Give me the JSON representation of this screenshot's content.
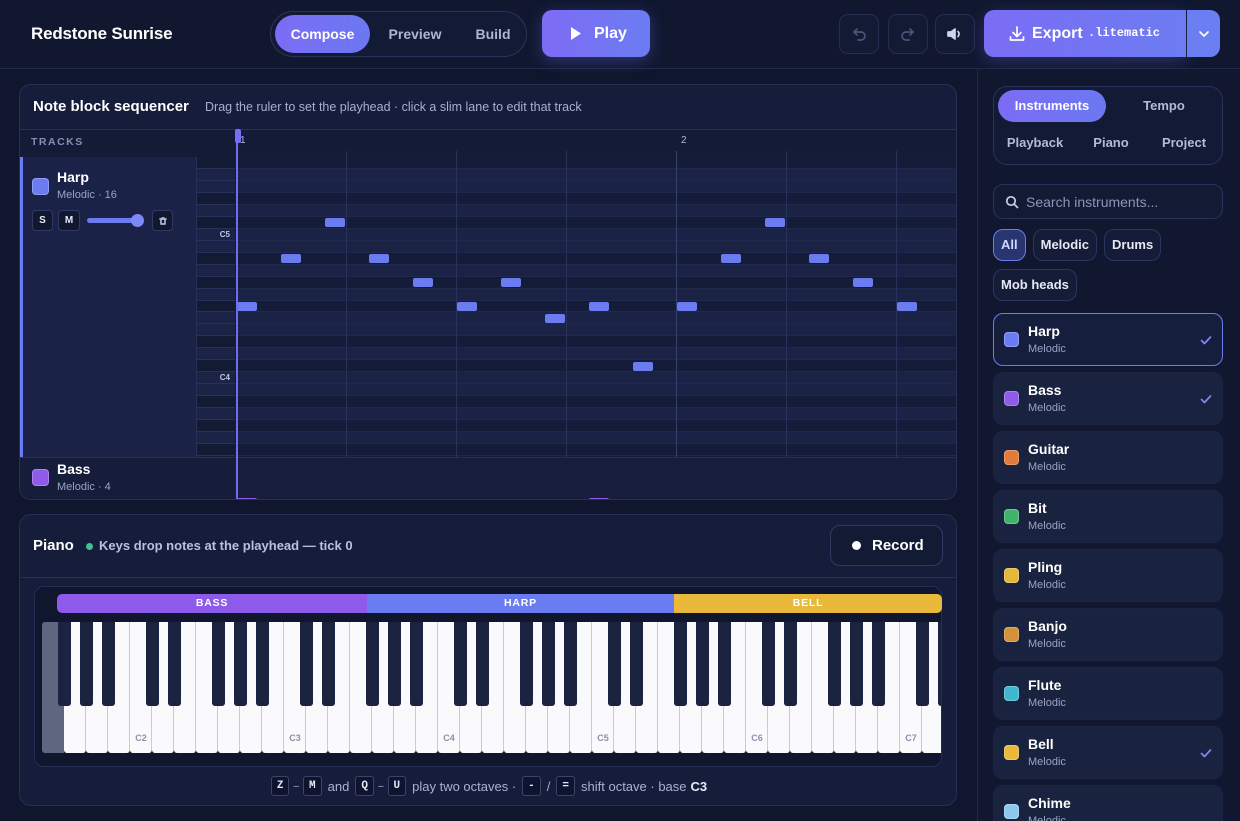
{
  "header": {
    "title": "Redstone Sunrise",
    "mode_tabs": [
      {
        "label": "Compose",
        "active": true
      },
      {
        "label": "Preview",
        "active": false
      },
      {
        "label": "Build",
        "active": false
      }
    ],
    "play": "Play",
    "export": "Export",
    "export_format": ".litematic"
  },
  "sequencer": {
    "title": "Note block sequencer",
    "hint": "Drag the ruler to set the playhead · click a slim lane to edit that track",
    "tracks_heading": "TRACKS",
    "ruler_marks": [
      "1",
      "2"
    ],
    "pitch_labels": [
      "C5",
      "C4"
    ],
    "tracks": [
      {
        "name": "Harp",
        "meta": "Melodic · 16",
        "color": "#6b7cf0",
        "solo": "S",
        "mute": "M"
      },
      {
        "name": "Bass",
        "meta": "Melodic · 4",
        "color": "#8f5be8"
      }
    ]
  },
  "piano": {
    "title": "Piano",
    "status": "Keys drop notes at the playhead — tick 0",
    "record": "Record",
    "zones": [
      {
        "label": "BASS",
        "color": "#8d5ae9"
      },
      {
        "label": "HARP",
        "color": "#6b7cf0"
      },
      {
        "label": "BELL",
        "color": "#e8b93a"
      }
    ],
    "octave_labels": [
      "C2",
      "C3",
      "C4",
      "C5",
      "C6",
      "C7"
    ],
    "help": {
      "octave_low": [
        "Z",
        "M"
      ],
      "range_dash": "–",
      "joiner": "and",
      "octave_high": [
        "Q",
        "U"
      ],
      "play_text": "play two octaves ·",
      "shift_keys": [
        "-",
        "="
      ],
      "slash": "/",
      "shift_text": "shift octave · base",
      "base": "C3"
    }
  },
  "sidebar": {
    "tabs": [
      {
        "label": "Instruments",
        "active": true
      },
      {
        "label": "Tempo",
        "active": false
      },
      {
        "label": "Playback",
        "active": false
      },
      {
        "label": "Piano",
        "active": false
      },
      {
        "label": "Project",
        "active": false
      }
    ],
    "search_placeholder": "Search instruments...",
    "filters": [
      {
        "label": "All",
        "active": true
      },
      {
        "label": "Melodic",
        "active": false
      },
      {
        "label": "Drums",
        "active": false
      },
      {
        "label": "Mob heads",
        "active": false
      }
    ],
    "instruments": [
      {
        "name": "Harp",
        "category": "Melodic",
        "color": "#6b7cf0",
        "in_use": true,
        "selected": true
      },
      {
        "name": "Bass",
        "category": "Melodic",
        "color": "#8f5be8",
        "in_use": true,
        "selected": false
      },
      {
        "name": "Guitar",
        "category": "Melodic",
        "color": "#e07b3c",
        "in_use": false,
        "selected": false
      },
      {
        "name": "Bit",
        "category": "Melodic",
        "color": "#3fb36b",
        "in_use": false,
        "selected": false
      },
      {
        "name": "Pling",
        "category": "Melodic",
        "color": "#e3b83c",
        "in_use": false,
        "selected": false
      },
      {
        "name": "Banjo",
        "category": "Melodic",
        "color": "#d4913a",
        "in_use": false,
        "selected": false
      },
      {
        "name": "Flute",
        "category": "Melodic",
        "color": "#3fb8cf",
        "in_use": false,
        "selected": false
      },
      {
        "name": "Bell",
        "category": "Melodic",
        "color": "#e8b93a",
        "in_use": true,
        "selected": false
      },
      {
        "name": "Chime",
        "category": "Melodic",
        "color": "#8ec7ee",
        "in_use": false,
        "selected": false
      }
    ]
  }
}
